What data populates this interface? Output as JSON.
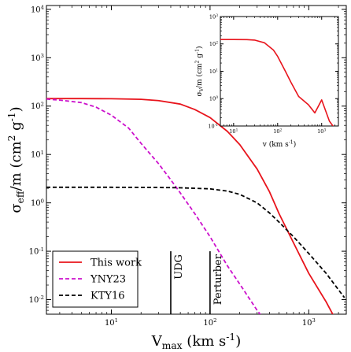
{
  "chart_data": [
    {
      "type": "line",
      "xlabel": "V_max (km s^-1)",
      "ylabel": "σ_eff/m (cm^2 g^-1)",
      "xscale": "log",
      "yscale": "log",
      "xlim": [
        2.2,
        2400
      ],
      "ylim": [
        0.005,
        12000
      ],
      "x_ticks": [
        {
          "value": 10,
          "label": "10^1"
        },
        {
          "value": 100,
          "label": "10^2"
        },
        {
          "value": 1000,
          "label": "10^3"
        }
      ],
      "y_ticks": [
        {
          "value": 0.01,
          "label": "10^-2"
        },
        {
          "value": 0.1,
          "label": "10^-1"
        },
        {
          "value": 1,
          "label": "10^0"
        },
        {
          "value": 10,
          "label": "10^1"
        },
        {
          "value": 100,
          "label": "10^2"
        },
        {
          "value": 1000,
          "label": "10^3"
        },
        {
          "value": 10000,
          "label": "10^4"
        }
      ],
      "legend_position": "bottom-left",
      "series": [
        {
          "name": "This work",
          "color": "#e8141c",
          "style": "solid",
          "points": [
            [
              2.2,
              143
            ],
            [
              5,
              143
            ],
            [
              10,
              142
            ],
            [
              20,
              138
            ],
            [
              30,
              130
            ],
            [
              50,
              110
            ],
            [
              70,
              85
            ],
            [
              100,
              58
            ],
            [
              150,
              30
            ],
            [
              200,
              16
            ],
            [
              300,
              5
            ],
            [
              400,
              1.7
            ],
            [
              500,
              0.6
            ],
            [
              700,
              0.15
            ],
            [
              1000,
              0.035
            ],
            [
              1500,
              0.009
            ],
            [
              2000,
              0.003
            ]
          ]
        },
        {
          "name": "YNY23",
          "color": "#cc11cc",
          "style": "dashed",
          "points": [
            [
              2.2,
              140
            ],
            [
              3,
              133
            ],
            [
              5,
              118
            ],
            [
              7,
              95
            ],
            [
              10,
              65
            ],
            [
              15,
              35
            ],
            [
              20,
              17
            ],
            [
              30,
              6.5
            ],
            [
              40,
              3
            ],
            [
              50,
              1.6
            ],
            [
              70,
              0.6
            ],
            [
              100,
              0.2
            ],
            [
              150,
              0.05
            ],
            [
              200,
              0.021
            ],
            [
              300,
              0.006
            ],
            [
              350,
              0.004
            ]
          ]
        },
        {
          "name": "KTY16",
          "color": "#000000",
          "style": "dashed",
          "points": [
            [
              2.2,
              2.1
            ],
            [
              10,
              2.1
            ],
            [
              30,
              2.08
            ],
            [
              50,
              2.05
            ],
            [
              100,
              1.95
            ],
            [
              150,
              1.75
            ],
            [
              200,
              1.5
            ],
            [
              300,
              1.0
            ],
            [
              400,
              0.62
            ],
            [
              500,
              0.4
            ],
            [
              700,
              0.2
            ],
            [
              1000,
              0.09
            ],
            [
              1500,
              0.035
            ],
            [
              2000,
              0.016
            ],
            [
              2300,
              0.011
            ]
          ]
        }
      ],
      "annotations": [
        {
          "label": "UDG",
          "x": 40,
          "y_range": [
            0.005,
            0.1
          ]
        },
        {
          "label": "Perturber",
          "x": 100,
          "y_range": [
            0.005,
            0.1
          ]
        }
      ]
    },
    {
      "type": "line",
      "placement": "inset",
      "xlabel": "v (km s^-1)",
      "ylabel": "σ_V/m (cm^2 g^-1)",
      "xscale": "log",
      "yscale": "log",
      "xlim": [
        5,
        2400
      ],
      "ylim": [
        0.1,
        1000
      ],
      "x_ticks": [
        {
          "value": 10,
          "label": "10^1"
        },
        {
          "value": 100,
          "label": "10^2"
        },
        {
          "value": 1000,
          "label": "10^3"
        }
      ],
      "y_ticks": [
        {
          "value": 0.1,
          "label": "10^-1"
        },
        {
          "value": 1,
          "label": "10^0"
        },
        {
          "value": 10,
          "label": "10^1"
        },
        {
          "value": 100,
          "label": "10^2"
        },
        {
          "value": 1000,
          "label": "10^3"
        }
      ],
      "series": [
        {
          "color": "#e8141c",
          "style": "solid",
          "points": [
            [
              5,
              145
            ],
            [
              10,
              145
            ],
            [
              20,
              143
            ],
            [
              30,
              138
            ],
            [
              50,
              110
            ],
            [
              80,
              60
            ],
            [
              100,
              35
            ],
            [
              150,
              10
            ],
            [
              200,
              4
            ],
            [
              300,
              1.2
            ],
            [
              500,
              0.6
            ],
            [
              700,
              0.3
            ],
            [
              1000,
              0.9
            ],
            [
              1500,
              0.15
            ],
            [
              2000,
              0.08
            ]
          ]
        }
      ]
    }
  ]
}
